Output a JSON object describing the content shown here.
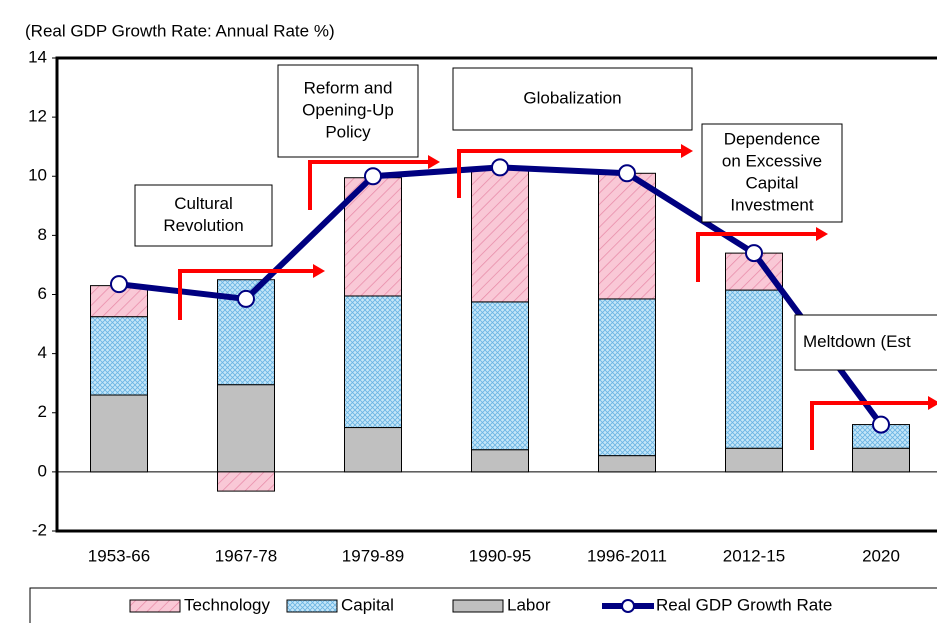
{
  "chart_data": {
    "type": "bar",
    "title": "(Real GDP Growth Rate: Annual Rate %)",
    "categories": [
      "1953-66",
      "1967-78",
      "1979-89",
      "1990-95",
      "1996-2011",
      "2012-15",
      "2020"
    ],
    "series": [
      {
        "name": "Technology",
        "color": "#f9c8d6",
        "values": [
          1.05,
          -0.65,
          4.0,
          4.55,
          4.25,
          1.25,
          0
        ]
      },
      {
        "name": "Capital",
        "color": "#c5e6f8",
        "values": [
          2.65,
          3.55,
          4.45,
          5.0,
          5.3,
          5.35,
          0.8
        ]
      },
      {
        "name": "Labor",
        "color": "#c0c0c0",
        "values": [
          2.6,
          2.95,
          1.5,
          0.75,
          0.55,
          0.8,
          0.8
        ]
      },
      {
        "name": "Real GDP Growth Rate",
        "type": "line",
        "color": "#000080",
        "values": [
          6.35,
          5.85,
          10.0,
          10.3,
          10.1,
          7.4,
          1.6
        ]
      }
    ],
    "ylim": [
      -2,
      14
    ],
    "yticks": [
      -2,
      0,
      2,
      4,
      6,
      8,
      10,
      12,
      14
    ],
    "annotations": [
      {
        "lines": [
          "Cultural",
          "Revolution"
        ]
      },
      {
        "lines": [
          "Reform and",
          "Opening-Up",
          "Policy"
        ]
      },
      {
        "lines": [
          "Globalization"
        ]
      },
      {
        "lines": [
          "Dependence",
          "on Excessive",
          "Capital",
          "Investment"
        ]
      },
      {
        "lines": [
          "Meltdown (Est"
        ]
      }
    ],
    "legend": "bottom"
  }
}
